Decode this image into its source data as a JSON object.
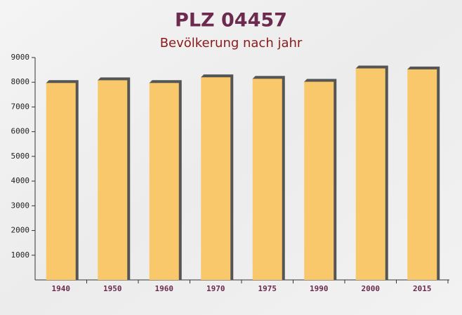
{
  "chart_data": {
    "type": "bar",
    "title": "PLZ 04457",
    "subtitle": "Bevölkerung nach jahr",
    "categories": [
      "1940",
      "1950",
      "1960",
      "1970",
      "1975",
      "1990",
      "2000",
      "2015"
    ],
    "values": [
      7970,
      8080,
      7970,
      8200,
      8140,
      8020,
      8560,
      8520
    ],
    "color": "#f9c86a",
    "ylim": [
      0,
      9000
    ],
    "yticks": [
      1000,
      2000,
      3000,
      4000,
      5000,
      6000,
      7000,
      8000,
      9000
    ],
    "grid": false
  }
}
